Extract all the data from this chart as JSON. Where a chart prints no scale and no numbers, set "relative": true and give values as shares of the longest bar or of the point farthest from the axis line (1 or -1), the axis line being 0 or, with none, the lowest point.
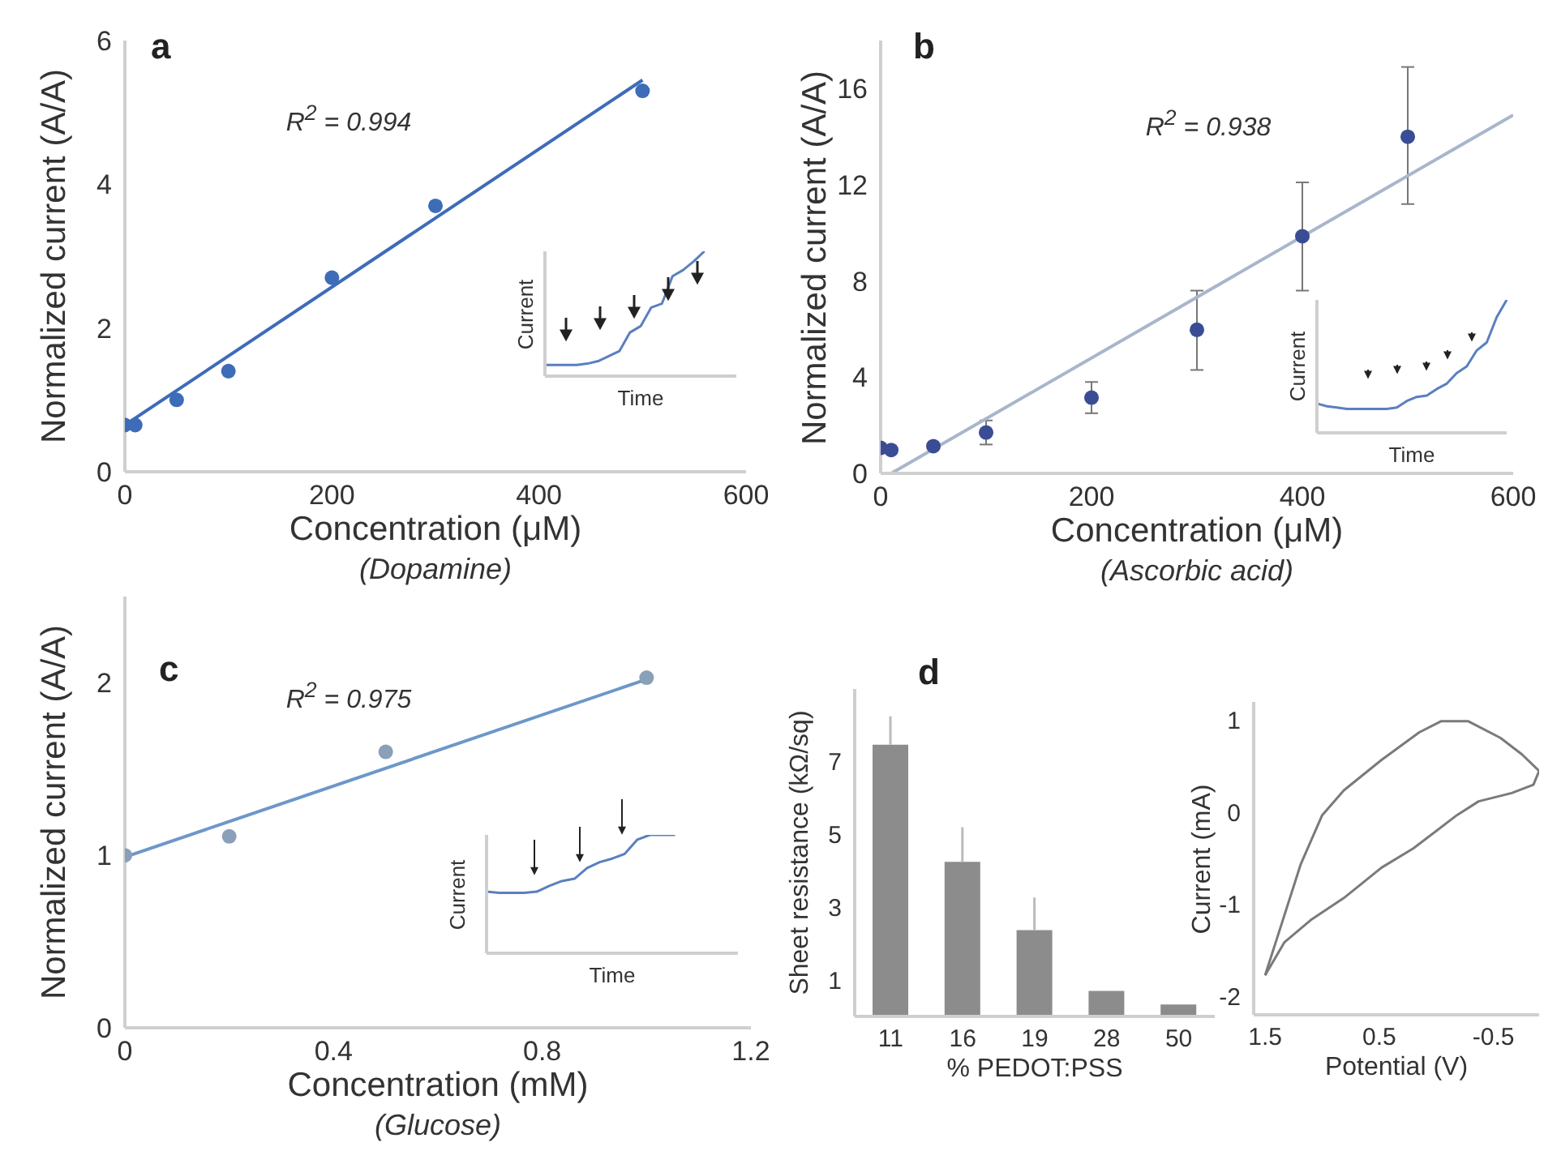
{
  "chart_data": [
    {
      "type": "scatter",
      "title": "a",
      "subtitle": "(Dopamine)",
      "xlabel": "Concentration (μM)",
      "ylabel": "Normalized current (A/A)",
      "annotations": [
        "R$^{2}$ = 0.994"
      ],
      "xlim": [
        0,
        600
      ],
      "xticks": [
        0,
        200,
        400,
        600
      ],
      "ylim": [
        0,
        6
      ],
      "yticks": [
        0,
        2,
        4,
        6
      ],
      "marker": "circle",
      "series": [
        {
          "type": "scatter",
          "color": "#3d6cb9",
          "x": [
            0,
            10,
            50,
            100,
            200,
            300,
            500
          ],
          "values": [
            0.65,
            0.65,
            1.0,
            1.4,
            2.7,
            3.7,
            5.3
          ]
        },
        {
          "type": "line",
          "marker": "none",
          "color": "#3d6cb9",
          "x": [
            0,
            500
          ],
          "values": [
            0.65,
            5.45
          ]
        }
      ]
    },
    {
      "type": "line",
      "relative": true,
      "xlabel": "Time",
      "ylabel": "Current",
      "categories": [
        null,
        null,
        null,
        null,
        null,
        null,
        null,
        null,
        null,
        null,
        null,
        null,
        null,
        null,
        null,
        null,
        null,
        null,
        null
      ],
      "series": [
        {
          "color": "#5a7fc0",
          "values": [
            0.09,
            0.09,
            0.09,
            0.09,
            0.1,
            0.12,
            0.16,
            0.2,
            0.35,
            0.4,
            0.55,
            0.58,
            0.8,
            0.85,
            0.92,
            1.0,
            null,
            null,
            null
          ]
        }
      ]
    },
    {
      "type": "scatter",
      "title": "b",
      "subtitle": "(Ascorbic acid)",
      "xlabel": "Concentration (μM)",
      "ylabel": "Normalized current (A/A)",
      "annotations": [
        "R$^{2}$ = 0.938"
      ],
      "xlim": [
        0,
        600
      ],
      "xticks": [
        0,
        200,
        400,
        600
      ],
      "ylim": [
        0,
        18
      ],
      "yticks": [
        0,
        4,
        8,
        12,
        16
      ],
      "marker": "circle",
      "series": [
        {
          "type": "scatter",
          "color": "#3a4d94",
          "x": [
            0,
            10,
            50,
            100,
            200,
            300,
            400,
            500
          ],
          "values": [
            1.06,
            0.97,
            1.13,
            1.7,
            3.15,
            5.97,
            9.86,
            14.0
          ],
          "errors": [
            null,
            null,
            null,
            [
              1.2,
              2.2
            ],
            [
              2.5,
              3.8
            ],
            [
              4.3,
              7.6
            ],
            [
              7.6,
              12.1
            ],
            [
              11.2,
              16.9
            ]
          ]
        },
        {
          "type": "line",
          "marker": "none",
          "color": "#a8b6cc",
          "x": [
            10,
            600
          ],
          "values": [
            0,
            14.9
          ]
        }
      ]
    },
    {
      "type": "line",
      "relative": true,
      "xlabel": "Time",
      "ylabel": "Current",
      "categories": [
        null,
        null,
        null,
        null,
        null,
        null,
        null,
        null,
        null,
        null,
        null,
        null,
        null,
        null,
        null,
        null,
        null,
        null,
        null,
        null
      ],
      "series": [
        {
          "color": "#5a7fc0",
          "values": [
            0.22,
            0.2,
            0.19,
            0.18,
            0.18,
            0.18,
            0.18,
            0.18,
            0.19,
            0.24,
            0.27,
            0.28,
            0.33,
            0.37,
            0.45,
            0.5,
            0.62,
            0.68,
            0.87,
            1.0
          ]
        }
      ]
    },
    {
      "type": "scatter",
      "title": "c",
      "subtitle": "(Glucose)",
      "xlabel": "Concentration (mM)",
      "ylabel": "Normalized current (A/A)",
      "annotations": [
        "R$^{2}$ = 0.975"
      ],
      "xlim": [
        0,
        1.2
      ],
      "xticks": [
        0,
        0.4,
        0.8,
        1.2
      ],
      "ylim": [
        0,
        2.5
      ],
      "yticks": [
        0,
        1,
        2
      ],
      "marker": "circle",
      "series": [
        {
          "type": "scatter",
          "color": "#8aa0b8",
          "x": [
            0,
            0.2,
            0.5,
            1.0
          ],
          "values": [
            1.0,
            1.11,
            1.6,
            2.03
          ]
        },
        {
          "type": "line",
          "marker": "none",
          "color": "#6d97c9",
          "x": [
            0,
            1.0
          ],
          "values": [
            0.99,
            2.02
          ]
        }
      ]
    },
    {
      "type": "line",
      "relative": true,
      "xlabel": "Time",
      "ylabel": "Current",
      "categories": [
        null,
        null,
        null,
        null,
        null,
        null,
        null,
        null,
        null,
        null,
        null,
        null,
        null,
        null,
        null,
        null,
        null,
        null,
        null,
        null,
        null
      ],
      "series": [
        {
          "color": "#5a7fc0",
          "values": [
            0.52,
            0.51,
            0.51,
            0.51,
            0.52,
            0.57,
            0.61,
            0.63,
            0.72,
            0.77,
            0.8,
            0.84,
            0.96,
            1.0,
            1.0,
            1.0,
            null,
            null,
            null,
            null,
            null
          ]
        }
      ]
    },
    {
      "type": "bar",
      "title": "d",
      "xlabel": "% PEDOT:PSS",
      "ylabel": "Sheet resistance (kΩ/sq)",
      "categories": [
        "11",
        "16",
        "19",
        "28",
        "50"
      ],
      "ylim": [
        0,
        9
      ],
      "yticks": [
        1,
        3,
        5,
        7
      ],
      "series": [
        {
          "color": "#8c8c8c",
          "values": [
            7.47,
            4.25,
            2.37,
            0.7,
            0.33
          ],
          "errors": [
            [
              7.47,
              8.25
            ],
            [
              4.25,
              5.2
            ],
            [
              2.37,
              3.27
            ],
            null,
            null
          ]
        }
      ]
    },
    {
      "type": "line",
      "xlabel": "Potential (V)",
      "ylabel": "Current (mA)",
      "xlim": [
        1.6,
        -0.9
      ],
      "xticks": [
        1.5,
        0.5,
        -0.5
      ],
      "ylim": [
        -2.2,
        1.2
      ],
      "yticks": [
        -2,
        -1,
        0,
        1
      ],
      "series": [
        {
          "color": "#7a7a7a",
          "x": [
            1.5,
            1.36,
            1.19,
            1.0,
            0.81,
            0.48,
            0.15,
            -0.04,
            -0.28,
            -0.56,
            -0.75,
            -0.9
          ],
          "values": [
            -1.77,
            -1.23,
            -0.57,
            -0.03,
            0.24,
            0.57,
            0.87,
            0.99,
            0.99,
            0.81,
            0.63,
            0.45
          ]
        },
        {
          "color": "#7a7a7a",
          "x": [
            -0.9,
            -0.85,
            -0.66,
            -0.37,
            -0.18,
            0.2,
            0.48,
            0.81,
            1.1,
            1.33,
            1.5
          ],
          "values": [
            0.45,
            0.3,
            0.21,
            0.12,
            -0.03,
            -0.39,
            -0.6,
            -0.93,
            -1.17,
            -1.41,
            -1.77
          ]
        }
      ]
    }
  ]
}
